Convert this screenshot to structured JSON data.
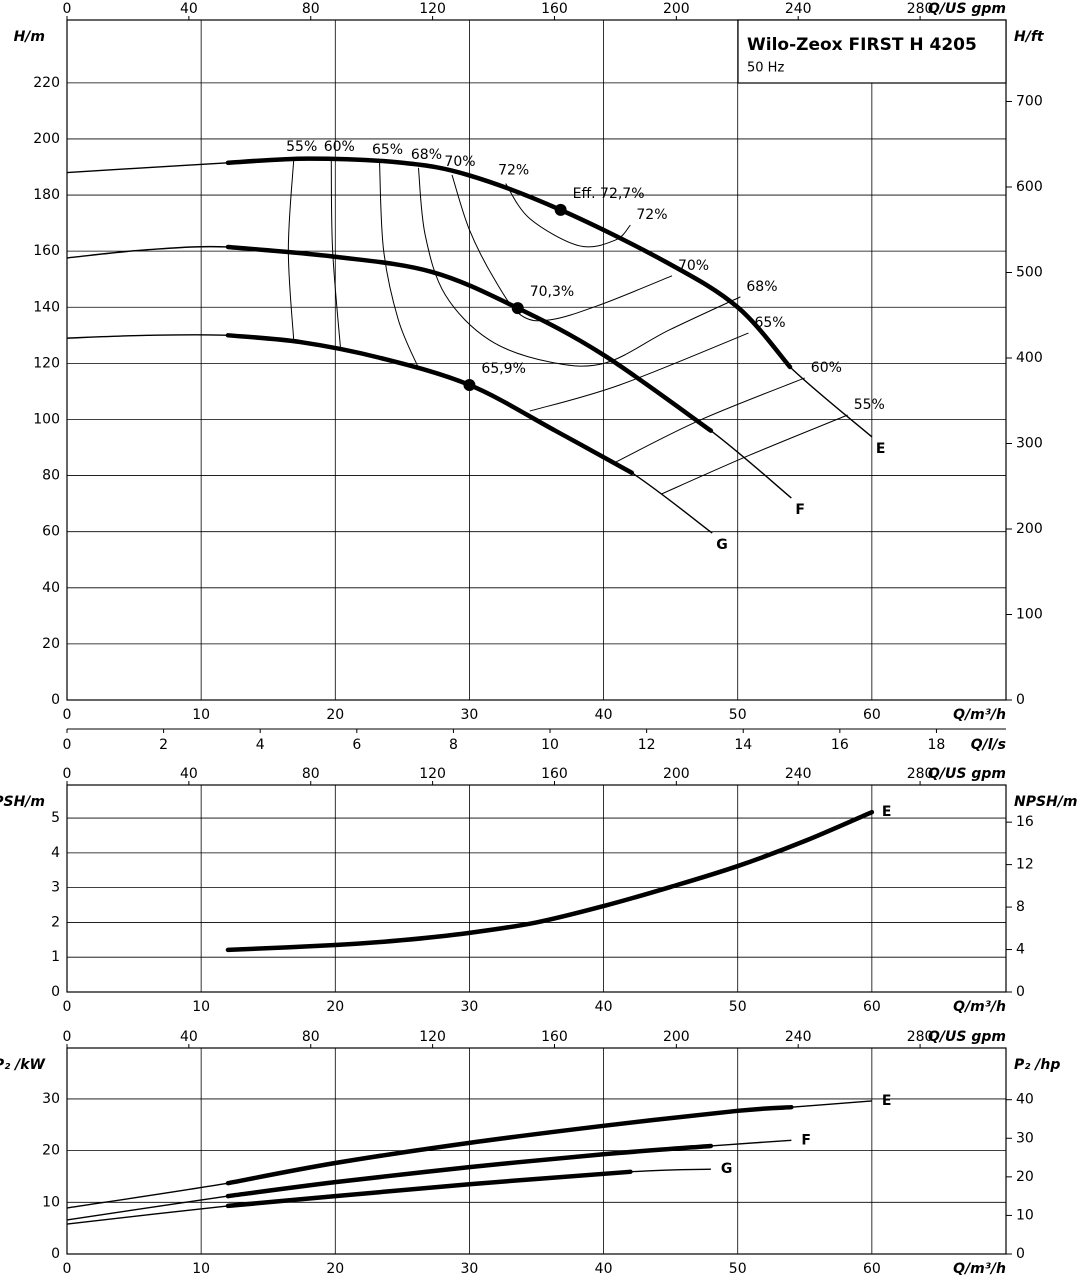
{
  "chart_data": [
    {
      "type": "line",
      "title": "Wilo-Zeox FIRST H 4205",
      "subtitle": "50 Hz",
      "x_label": "Q/m³/h",
      "x2_label": "Q/US gpm",
      "x3_label": "Q/l/s",
      "y_label": "H/m",
      "y2_label": "H/ft",
      "xlim": [
        0,
        70
      ],
      "xticks": [
        0,
        10,
        20,
        30,
        40,
        50,
        60
      ],
      "x2lim": [
        0,
        308.2
      ],
      "x2ticks": [
        0,
        40,
        80,
        120,
        160,
        200,
        240,
        280
      ],
      "x3lim": [
        0,
        19.44
      ],
      "x3ticks": [
        0,
        2,
        4,
        6,
        8,
        10,
        12,
        14,
        16,
        18
      ],
      "ylim": [
        0,
        242.4
      ],
      "yticks": [
        0,
        20,
        40,
        60,
        80,
        100,
        120,
        140,
        160,
        180,
        200,
        220
      ],
      "y2lim": [
        0,
        795.3
      ],
      "y2ticks": [
        0,
        100,
        200,
        300,
        400,
        500,
        600,
        700
      ],
      "grid": true,
      "series": [
        {
          "name": "E",
          "color": "#000000",
          "x": [
            0,
            5,
            12,
            18,
            25,
            30,
            36.8,
            44.7,
            50,
            53.9,
            60
          ],
          "values": [
            188,
            189.5,
            191.5,
            193,
            191.5,
            187,
            174.7,
            156,
            140,
            118.7,
            93.8
          ],
          "bold_range": [
            12,
            53.9
          ],
          "best_point": {
            "x": 36.8,
            "value": 174.7,
            "label": "Eff. 72,7%"
          }
        },
        {
          "name": "F",
          "color": "#000000",
          "x": [
            0,
            6,
            12,
            20,
            27.2,
            33.6,
            40,
            48,
            54
          ],
          "values": [
            157.6,
            160.5,
            161.5,
            158,
            152.6,
            139.7,
            123,
            96,
            72
          ],
          "bold_range": [
            12,
            48
          ],
          "best_point": {
            "x": 33.6,
            "value": 139.7,
            "label": "70,3%"
          }
        },
        {
          "name": "G",
          "color": "#000000",
          "x": [
            0,
            6,
            12,
            17.4,
            23.3,
            30,
            36.4,
            42.1,
            48.1
          ],
          "values": [
            129,
            130,
            130,
            127.6,
            122,
            112.3,
            96,
            81,
            59.5
          ],
          "bold_range": [
            12,
            42.1
          ],
          "best_point": {
            "x": 30,
            "value": 112.3,
            "label": "65,9%"
          }
        }
      ],
      "efficiency_lines": [
        {
          "x": [
            16.9,
            16.5,
            16.9
          ],
          "values": [
            192.5,
            160.4,
            128.3
          ],
          "label_start": "55%"
        },
        {
          "x": [
            19.7,
            19.8,
            20.4
          ],
          "values": [
            192.5,
            160.4,
            124.8
          ],
          "label_start": "60%"
        },
        {
          "x": [
            23.3,
            23.6,
            24.7,
            26.2
          ],
          "values": [
            191.4,
            160.4,
            135.5,
            118.4
          ],
          "label_start": "65%"
        },
        {
          "x": [
            26.2,
            26.7,
            28.2,
            31.5,
            36.0,
            40.1,
            44.9,
            50.2
          ],
          "values": [
            189.7,
            165.8,
            144.4,
            128.3,
            120.5,
            120.1,
            131.9,
            143.7
          ],
          "label_start": "68%",
          "label_end": "68%"
        },
        {
          "x": [
            28.7,
            30.0,
            31.9,
            33.8,
            36.0,
            39.7,
            45.1
          ],
          "values": [
            187.2,
            167.6,
            149.7,
            137.3,
            135.5,
            140.8,
            151.2
          ],
          "label_start": "70%",
          "label_end": "70%"
        },
        {
          "x": [
            32.7,
            34.5,
            38.2,
            40.9,
            42.0
          ],
          "values": [
            184.1,
            171.6,
            161.9,
            164.0,
            169.3
          ],
          "label_start": "72%",
          "label_end": "72%"
        },
        {
          "x": [
            34.5,
            41.2,
            50.8
          ],
          "values": [
            103.0,
            112.3,
            130.8
          ],
          "label_end": "65%"
        },
        {
          "x": [
            40.9,
            47.2,
            55.0
          ],
          "values": [
            84.8,
            99.8,
            114.8
          ],
          "label_end": "60%"
        },
        {
          "x": [
            44.3,
            50.9,
            58.2
          ],
          "values": [
            73.4,
            87.3,
            101.6
          ],
          "label_end": "55%"
        }
      ]
    },
    {
      "type": "line",
      "x_label": "Q/m³/h",
      "x2_label": "Q/US gpm",
      "y_label": "NPSH/m",
      "y2_label": "NPSH/m",
      "xlim": [
        0,
        70
      ],
      "xticks": [
        0,
        10,
        20,
        30,
        40,
        50,
        60
      ],
      "x2lim": [
        0,
        308.2
      ],
      "x2ticks": [
        0,
        40,
        80,
        120,
        160,
        200,
        240,
        280
      ],
      "ylim": [
        0,
        5.95
      ],
      "yticks": [
        0,
        1,
        2,
        3,
        4,
        5
      ],
      "y2lim": [
        0,
        19.5
      ],
      "y2ticks": [
        0,
        4,
        8,
        12,
        16
      ],
      "grid": true,
      "series": [
        {
          "name": "E",
          "color": "#000000",
          "x": [
            12,
            20,
            25,
            30,
            35,
            40,
            45,
            50,
            55,
            60
          ],
          "values": [
            1.21,
            1.35,
            1.49,
            1.7,
            2.0,
            2.47,
            3.02,
            3.62,
            4.34,
            5.17
          ],
          "bold_range": [
            12,
            60
          ]
        }
      ]
    },
    {
      "type": "line",
      "x_label": "Q/m³/h",
      "x2_label": "Q/US gpm",
      "y_label": "P₂ /kW",
      "y2_label": "P₂ /hp",
      "xlim": [
        0,
        70
      ],
      "xticks": [
        0,
        10,
        20,
        30,
        40,
        50,
        60
      ],
      "x2lim": [
        0,
        308.2
      ],
      "x2ticks": [
        0,
        40,
        80,
        120,
        160,
        200,
        240,
        280
      ],
      "ylim": [
        0,
        39.85
      ],
      "yticks": [
        0,
        10,
        20,
        30
      ],
      "y2lim": [
        0,
        53.4
      ],
      "y2ticks": [
        0,
        10,
        20,
        30,
        40
      ],
      "grid": true,
      "series": [
        {
          "name": "E",
          "color": "#000000",
          "x": [
            0,
            12,
            20,
            30,
            40,
            50,
            54,
            60
          ],
          "values": [
            8.9,
            13.7,
            17.6,
            21.5,
            24.8,
            27.7,
            28.4,
            29.6
          ],
          "bold_range": [
            12,
            54
          ]
        },
        {
          "name": "F",
          "color": "#000000",
          "x": [
            0,
            12,
            20,
            30,
            40,
            48,
            54
          ],
          "values": [
            6.6,
            11.2,
            13.9,
            16.8,
            19.3,
            20.9,
            22.0
          ],
          "bold_range": [
            12,
            48
          ]
        },
        {
          "name": "G",
          "color": "#000000",
          "x": [
            0,
            12,
            20,
            30,
            42,
            48
          ],
          "values": [
            5.8,
            9.3,
            11.2,
            13.5,
            15.9,
            16.4
          ],
          "bold_range": [
            12,
            42
          ]
        }
      ]
    }
  ]
}
